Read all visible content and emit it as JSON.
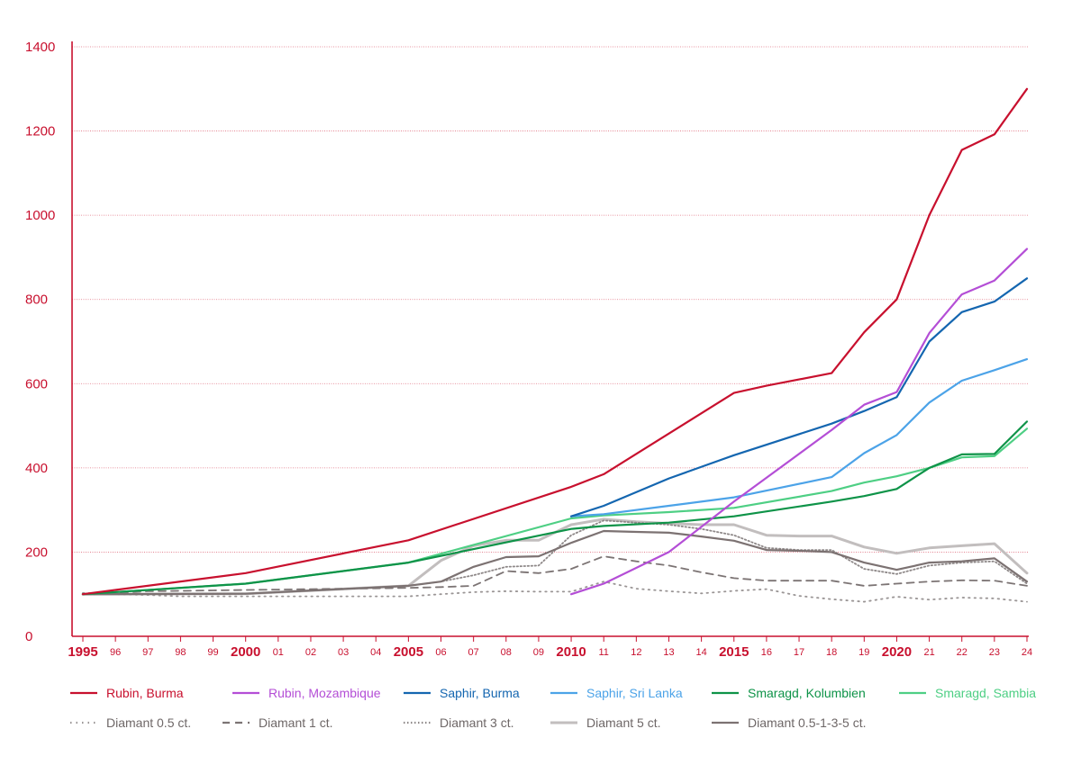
{
  "chart_data": {
    "type": "line",
    "title": "",
    "xlabel": "",
    "ylabel": "",
    "xlim": [
      1995,
      2024
    ],
    "ylim": [
      0,
      1400
    ],
    "yticks": [
      0,
      200,
      400,
      600,
      800,
      1000,
      1200,
      1400
    ],
    "ytick_labels": [
      "0",
      "200",
      "400",
      "600",
      "800",
      "1000",
      "1200",
      "1400"
    ],
    "x_tick_values": [
      1995,
      1996,
      1997,
      1998,
      1999,
      2000,
      2001,
      2002,
      2003,
      2004,
      2005,
      2006,
      2007,
      2008,
      2009,
      2010,
      2011,
      2012,
      2013,
      2014,
      2015,
      2016,
      2017,
      2018,
      2019,
      2020,
      2021,
      2022,
      2023,
      2024
    ],
    "x_tick_labels": [
      "1995",
      "96",
      "97",
      "98",
      "99",
      "2000",
      "01",
      "02",
      "03",
      "04",
      "2005",
      "06",
      "07",
      "08",
      "09",
      "2010",
      "11",
      "12",
      "13",
      "14",
      "2015",
      "16",
      "17",
      "18",
      "19",
      "2020",
      "21",
      "22",
      "23",
      "24"
    ],
    "x_major_ticks": [
      "1995",
      "2000",
      "2005",
      "2010",
      "2015",
      "2020"
    ],
    "grid": "horizontal dotted",
    "legend_position": "bottom",
    "axis_color": "#c8102e",
    "series": [
      {
        "name": "Rubin, Burma",
        "color": "#c8102e",
        "dash": "solid",
        "x": [
          1995,
          2000,
          2005,
          2010,
          2011,
          2015,
          2016,
          2017,
          2018,
          2019,
          2020,
          2021,
          2022,
          2023,
          2024
        ],
        "values": [
          100,
          150,
          228,
          355,
          385,
          578,
          595,
          610,
          625,
          722,
          800,
          1000,
          1155,
          1192,
          1300
        ]
      },
      {
        "name": "Rubin, Mozambique",
        "color": "#b44ed6",
        "dash": "solid",
        "x": [
          2010,
          2011,
          2013,
          2015,
          2018,
          2019,
          2020,
          2021,
          2022,
          2023,
          2024
        ],
        "values": [
          100,
          125,
          200,
          320,
          490,
          550,
          580,
          720,
          812,
          845,
          920
        ]
      },
      {
        "name": "Saphir, Burma",
        "color": "#1466b0",
        "dash": "solid",
        "x": [
          2010,
          2011,
          2013,
          2015,
          2018,
          2019,
          2020,
          2021,
          2022,
          2023,
          2024
        ],
        "values": [
          285,
          310,
          375,
          430,
          505,
          535,
          568,
          700,
          770,
          795,
          850
        ]
      },
      {
        "name": "Saphir, Sri Lanka",
        "color": "#4ca3e8",
        "dash": "solid",
        "x": [
          2010,
          2011,
          2013,
          2015,
          2018,
          2019,
          2020,
          2021,
          2022,
          2023,
          2024
        ],
        "values": [
          285,
          290,
          310,
          330,
          378,
          435,
          478,
          555,
          607,
          632,
          658
        ]
      },
      {
        "name": "Smaragd, Kolumbien",
        "color": "#0e9348",
        "dash": "solid",
        "x": [
          1995,
          2000,
          2005,
          2010,
          2011,
          2013,
          2015,
          2018,
          2019,
          2020,
          2021,
          2022,
          2023,
          2024
        ],
        "values": [
          100,
          125,
          175,
          255,
          262,
          270,
          285,
          320,
          333,
          350,
          400,
          432,
          433,
          510
        ]
      },
      {
        "name": "Smaragd, Sambia",
        "color": "#4ecf84",
        "dash": "solid",
        "x": [
          1995,
          2000,
          2005,
          2010,
          2011,
          2013,
          2015,
          2018,
          2019,
          2020,
          2021,
          2022,
          2023,
          2024
        ],
        "values": [
          100,
          125,
          175,
          280,
          287,
          295,
          305,
          345,
          365,
          380,
          400,
          425,
          428,
          493
        ]
      },
      {
        "name": "Diamant 0.5 ct.",
        "color": "#9a9595",
        "dash": "1.5,5",
        "x": [
          1995,
          1996,
          1997,
          1998,
          1999,
          2000,
          2001,
          2002,
          2003,
          2004,
          2005,
          2006,
          2007,
          2008,
          2009,
          2010,
          2011,
          2012,
          2013,
          2014,
          2015,
          2016,
          2017,
          2018,
          2019,
          2020,
          2021,
          2022,
          2023,
          2024
        ],
        "values": [
          103,
          100,
          98,
          95,
          95,
          95,
          95,
          95,
          95,
          95,
          95,
          100,
          105,
          107,
          106,
          106,
          130,
          113,
          107,
          102,
          108,
          112,
          96,
          88,
          82,
          94,
          87,
          92,
          90,
          82
        ]
      },
      {
        "name": "Diamant 1 ct.",
        "color": "#7c7474",
        "dash": "8,6",
        "x": [
          1995,
          1996,
          1997,
          1998,
          1999,
          2000,
          2001,
          2002,
          2003,
          2004,
          2005,
          2006,
          2007,
          2008,
          2009,
          2010,
          2011,
          2012,
          2013,
          2014,
          2015,
          2016,
          2017,
          2018,
          2019,
          2020,
          2021,
          2022,
          2023,
          2024
        ],
        "values": [
          100,
          103,
          107,
          108,
          109,
          110,
          111,
          112,
          113,
          114,
          115,
          117,
          120,
          155,
          150,
          160,
          190,
          178,
          168,
          152,
          138,
          132,
          132,
          132,
          120,
          125,
          130,
          133,
          132,
          120
        ]
      },
      {
        "name": "Diamant 3 ct.",
        "color": "#8e8888",
        "dash": "1.5,2.5",
        "x": [
          1995,
          2000,
          2005,
          2006,
          2007,
          2008,
          2009,
          2010,
          2011,
          2012,
          2013,
          2014,
          2015,
          2016,
          2017,
          2018,
          2019,
          2020,
          2021,
          2022,
          2023,
          2024
        ],
        "values": [
          100,
          101,
          120,
          130,
          145,
          165,
          168,
          240,
          275,
          270,
          265,
          255,
          240,
          210,
          205,
          205,
          160,
          148,
          168,
          175,
          178,
          125
        ]
      },
      {
        "name": "Diamant 5 ct.",
        "color": "#c2bebe",
        "dash": "solid",
        "x": [
          1995,
          2000,
          2005,
          2006,
          2007,
          2008,
          2009,
          2010,
          2011,
          2012,
          2013,
          2014,
          2015,
          2016,
          2017,
          2018,
          2019,
          2020,
          2021,
          2022,
          2023,
          2024
        ],
        "values": [
          100,
          101,
          120,
          180,
          215,
          228,
          228,
          265,
          278,
          272,
          268,
          265,
          265,
          240,
          238,
          238,
          212,
          197,
          210,
          215,
          220,
          150
        ]
      },
      {
        "name": "Diamant 0.5-1-3-5 ct.",
        "color": "#7c7272",
        "dash": "solid",
        "x": [
          1995,
          2000,
          2005,
          2006,
          2007,
          2008,
          2009,
          2010,
          2011,
          2012,
          2013,
          2014,
          2015,
          2016,
          2017,
          2018,
          2019,
          2020,
          2021,
          2022,
          2023,
          2024
        ],
        "values": [
          100,
          101,
          120,
          130,
          165,
          188,
          190,
          222,
          250,
          248,
          246,
          237,
          227,
          205,
          203,
          200,
          175,
          158,
          175,
          178,
          185,
          130
        ]
      }
    ]
  }
}
